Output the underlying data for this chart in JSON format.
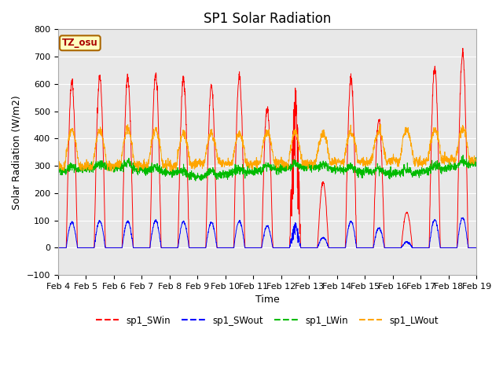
{
  "title": "SP1 Solar Radiation",
  "xlabel": "Time",
  "ylabel": "Solar Radiation (W/m2)",
  "ylim": [
    -100,
    800
  ],
  "tz_label": "TZ_osu",
  "colors": {
    "SWin": "#FF0000",
    "SWout": "#0000FF",
    "LWin": "#00BB00",
    "LWout": "#FFA500"
  },
  "legend_labels": [
    "sp1_SWin",
    "sp1_SWout",
    "sp1_LWin",
    "sp1_LWout"
  ],
  "x_tick_labels": [
    "Feb 4",
    "Feb 5",
    "Feb 6",
    "Feb 7",
    "Feb 8",
    "Feb 9",
    "Feb 10",
    "Feb 11",
    "Feb 12",
    "Feb 13",
    "Feb 14",
    "Feb 15",
    "Feb 16",
    "Feb 17",
    "Feb 18",
    "Feb 19"
  ],
  "n_days": 15,
  "pts_per_day": 144,
  "background_color": "#E8E8E8",
  "grid_color": "#FFFFFF",
  "title_fontsize": 12,
  "label_fontsize": 9,
  "tick_fontsize": 8
}
